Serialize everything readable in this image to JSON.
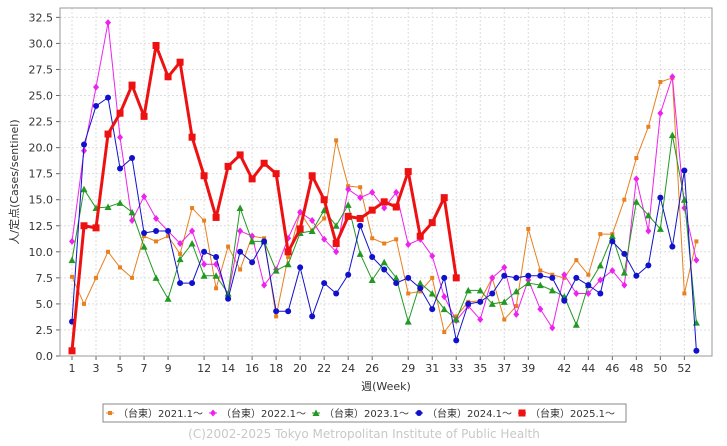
{
  "chart_data": {
    "type": "line",
    "x_label": "週(Week)",
    "y_label": "人/定点(Cases/sentinel)",
    "footer": "(C)2002-2025 Tokyo Metropolitan Institute of Public Health",
    "x": [
      1,
      2,
      3,
      4,
      5,
      6,
      7,
      8,
      9,
      10,
      11,
      12,
      13,
      14,
      15,
      16,
      17,
      18,
      19,
      20,
      21,
      22,
      23,
      24,
      25,
      26,
      27,
      28,
      29,
      30,
      31,
      32,
      33,
      34,
      35,
      36,
      37,
      38,
      39,
      40,
      41,
      42,
      43,
      44,
      45,
      46,
      47,
      48,
      49,
      50,
      51,
      52,
      53
    ],
    "xlim": [
      0,
      54.3
    ],
    "xticks": [
      1,
      3,
      5,
      7,
      9,
      12,
      14,
      16,
      18,
      20,
      22,
      24,
      26,
      29,
      31,
      33,
      35,
      37,
      39,
      42,
      44,
      46,
      48,
      50,
      52
    ],
    "ylim": [
      0,
      33.4
    ],
    "yticks": [
      {
        "value": 0,
        "label": "0.0"
      },
      2.5,
      {
        "value": 5,
        "label": "5.0"
      },
      7.5,
      {
        "value": 10,
        "label": "10.0"
      },
      12.5,
      {
        "value": 15,
        "label": "15.0"
      },
      17.5,
      {
        "value": 20,
        "label": "20.0"
      },
      22.5,
      {
        "value": 25,
        "label": "25.0"
      },
      27.5,
      {
        "value": 30,
        "label": "30.0"
      },
      32.5
    ],
    "grid": true,
    "legend": "bottom",
    "series": [
      {
        "name": "（台東）2021.1～",
        "color": "#e8801f",
        "marker": "square-small",
        "values": [
          7.6,
          5,
          7.5,
          10,
          8.5,
          7.5,
          11.5,
          11,
          11.5,
          9.8,
          14.2,
          13,
          6.5,
          10.5,
          8.3,
          11.5,
          11.3,
          3.8,
          9.5,
          13.8,
          12,
          13.2,
          20.7,
          16.3,
          16.2,
          11.3,
          10.8,
          11.2,
          6,
          6.2,
          7.5,
          2.3,
          3.8,
          5.2,
          5.3,
          7.5,
          3.5,
          4.8,
          12.2,
          8.2,
          7.8,
          7.5,
          9.2,
          7.8,
          11.7,
          11.7,
          15,
          19,
          22,
          26.3,
          26.7,
          6,
          11
        ]
      },
      {
        "name": "（台東）2022.1～",
        "color": "#ee22ee",
        "marker": "diamond",
        "values": [
          11,
          19.7,
          25.8,
          32,
          21,
          13,
          15.3,
          13.2,
          12,
          10.8,
          12,
          8.8,
          8.8,
          5.8,
          12,
          11.5,
          6.8,
          8.3,
          11.3,
          13.8,
          13,
          11.2,
          10,
          16,
          15.2,
          15.7,
          14.2,
          15.7,
          10.7,
          11.2,
          9.6,
          5.7,
          3.4,
          4.8,
          3.5,
          7.5,
          8.5,
          4,
          7.3,
          4.5,
          2.7,
          7.8,
          6,
          6,
          7.3,
          8.2,
          6.8,
          17,
          12,
          23.3,
          26.8,
          14.2,
          9.2
        ]
      },
      {
        "name": "（台東）2023.1～",
        "color": "#229922",
        "marker": "triangle",
        "values": [
          9.2,
          16,
          14.2,
          14.3,
          14.7,
          13.8,
          10.5,
          7.5,
          5.5,
          9.3,
          10.8,
          7.7,
          7.7,
          6,
          14.2,
          11,
          11,
          8.2,
          8.8,
          11.8,
          12,
          14,
          12.5,
          14.5,
          9.8,
          7.3,
          9,
          7.5,
          3.3,
          7,
          6,
          4.5,
          3.5,
          6.3,
          6.3,
          5,
          5.2,
          6.2,
          7,
          6.8,
          6.3,
          5.7,
          3,
          6.8,
          8.7,
          11.5,
          8,
          14.8,
          13.5,
          12.2,
          21.2,
          15,
          3.2
        ]
      },
      {
        "name": "（台東）2024.1～",
        "color": "#1111cc",
        "marker": "circle",
        "values": [
          3.3,
          20.3,
          24,
          24.8,
          18,
          19,
          11.8,
          12,
          12,
          7,
          7,
          10,
          9.5,
          5.5,
          10,
          9,
          11,
          4.3,
          4.3,
          8.5,
          3.8,
          7,
          6,
          7.8,
          12.5,
          9.5,
          8.3,
          7,
          7.5,
          6.5,
          4.5,
          7.5,
          1.5,
          5,
          5.2,
          6,
          7.7,
          7.5,
          7.7,
          7.7,
          7.5,
          5.3,
          7.5,
          6.8,
          6,
          11,
          9.8,
          7.7,
          8.7,
          15.2,
          10.5,
          17.8,
          0.5
        ]
      },
      {
        "name": "（台東）2025.1～",
        "color": "#ee1111",
        "marker": "square",
        "line_width": 3,
        "values": [
          0.5,
          12.5,
          12.3,
          21.3,
          23.3,
          26,
          23,
          29.8,
          26.8,
          28.2,
          21,
          17.3,
          13.3,
          18.2,
          19.3,
          17,
          18.5,
          17.5,
          10,
          12.2,
          17.3,
          15,
          10.8,
          13.4,
          13.2,
          14,
          14.8,
          14.3,
          17.7,
          11.5,
          12.8,
          15.2,
          7.5,
          null,
          null,
          null,
          null,
          null,
          null,
          null,
          null,
          null,
          null,
          null,
          null,
          null,
          null,
          null,
          null,
          null,
          null,
          null,
          null
        ]
      }
    ]
  }
}
